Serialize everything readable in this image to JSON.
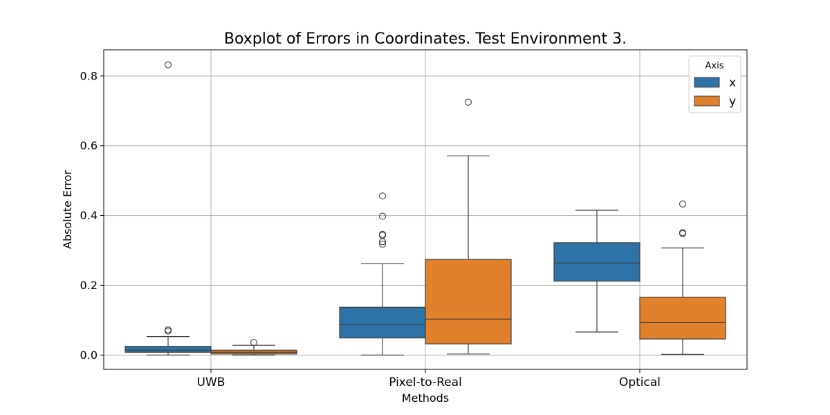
{
  "chart_data": {
    "type": "box",
    "title": "Boxplot of Errors in Coordinates. Test Environment 3.",
    "xlabel": "Methods",
    "ylabel": "Absolute Error",
    "categories": [
      "UWB",
      "Pixel-to-Real",
      "Optical"
    ],
    "ylim": [
      -0.041,
      0.875
    ],
    "yticks": [
      0.0,
      0.2,
      0.4,
      0.6,
      0.8
    ],
    "ytick_labels": [
      "0.0",
      "0.2",
      "0.4",
      "0.6",
      "0.8"
    ],
    "grid": true,
    "legend": {
      "title": "Axis",
      "position": "top-right"
    },
    "series": [
      {
        "name": "x",
        "color": "#2e73a7",
        "boxes": [
          {
            "whisker_low": 0.0,
            "q1": 0.008,
            "median": 0.014,
            "q3": 0.025,
            "whisker_high": 0.053,
            "outliers": [
              0.069,
              0.072,
              0.832
            ]
          },
          {
            "whisker_low": 0.0,
            "q1": 0.049,
            "median": 0.087,
            "q3": 0.137,
            "whisker_high": 0.262,
            "outliers": [
              0.318,
              0.325,
              0.343,
              0.346,
              0.398,
              0.456
            ]
          },
          {
            "whisker_low": 0.066,
            "q1": 0.212,
            "median": 0.264,
            "q3": 0.322,
            "whisker_high": 0.415,
            "outliers": []
          }
        ]
      },
      {
        "name": "y",
        "color": "#e1812c",
        "boxes": [
          {
            "whisker_low": 0.0,
            "q1": 0.003,
            "median": 0.008,
            "q3": 0.014,
            "whisker_high": 0.028,
            "outliers": [
              0.036
            ]
          },
          {
            "whisker_low": 0.003,
            "q1": 0.032,
            "median": 0.103,
            "q3": 0.274,
            "whisker_high": 0.571,
            "outliers": [
              0.725
            ]
          },
          {
            "whisker_low": 0.002,
            "q1": 0.046,
            "median": 0.093,
            "q3": 0.166,
            "whisker_high": 0.307,
            "outliers": [
              0.348,
              0.351,
              0.433
            ]
          }
        ]
      }
    ]
  }
}
